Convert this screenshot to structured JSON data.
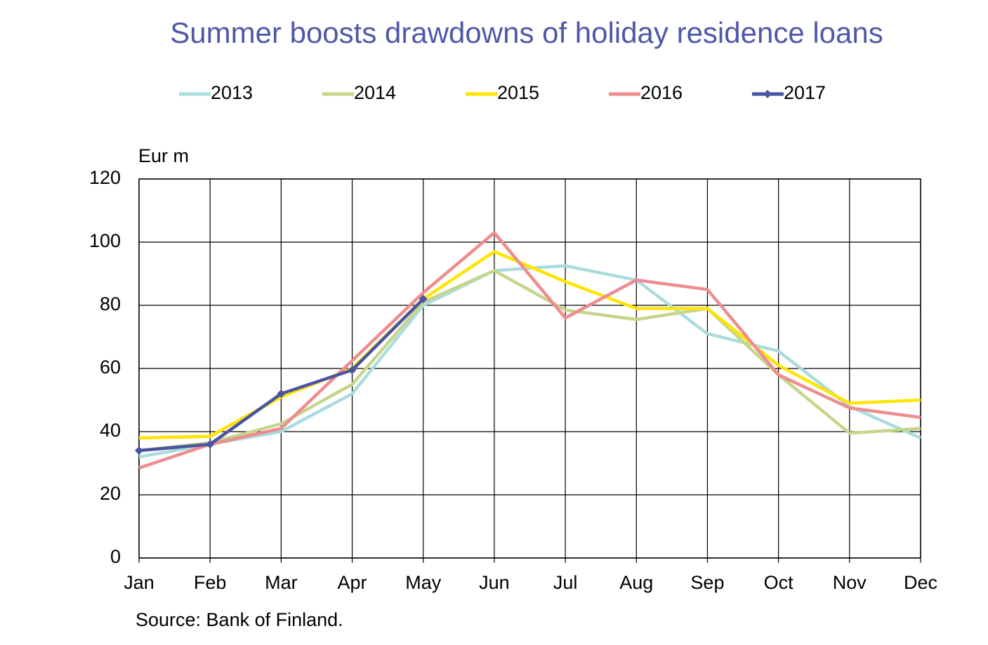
{
  "chart_data": {
    "type": "line",
    "title": "Summer boosts drawdowns of holiday residence loans",
    "y_label": "Eur m",
    "source": "Source: Bank of Finland.",
    "categories": [
      "Jan",
      "Feb",
      "Mar",
      "Apr",
      "May",
      "Jun",
      "Jul",
      "Aug",
      "Sep",
      "Oct",
      "Nov",
      "Dec"
    ],
    "series": [
      {
        "name": "2013",
        "color": "#aadbdd",
        "values": [
          32,
          36,
          40,
          52,
          80,
          91,
          92.5,
          88,
          71,
          65.5,
          48,
          38
        ]
      },
      {
        "name": "2014",
        "color": "#c5d68b",
        "values": [
          34,
          36.5,
          42.5,
          55,
          81,
          91,
          78.5,
          75.5,
          79,
          58,
          39.5,
          41
        ]
      },
      {
        "name": "2015",
        "color": "#ffe500",
        "values": [
          38,
          38.5,
          51,
          60,
          82,
          97,
          87.5,
          79,
          79,
          61,
          49,
          50
        ]
      },
      {
        "name": "2016",
        "color": "#ee8c8e",
        "values": [
          28.5,
          36,
          41,
          62.5,
          84,
          103,
          76,
          88,
          85,
          58,
          47.5,
          44.5
        ]
      },
      {
        "name": "2017",
        "color": "#4a54a3",
        "marker": "diamond",
        "values": [
          34,
          36,
          52,
          59.5,
          82,
          null,
          null,
          null,
          null,
          null,
          null,
          null
        ]
      }
    ],
    "ylim": [
      0,
      120
    ],
    "yticks": [
      0,
      20,
      40,
      60,
      80,
      100,
      120
    ],
    "grid": true,
    "legend": "top"
  }
}
